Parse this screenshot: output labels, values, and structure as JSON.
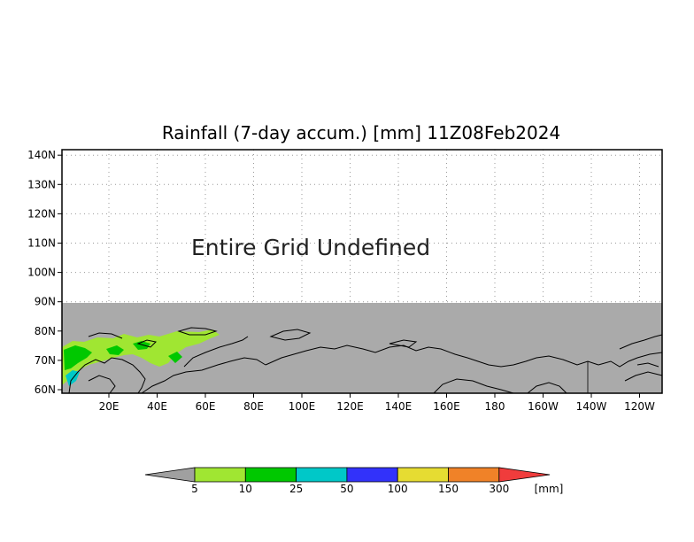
{
  "title": "Rainfall (7-day accum.) [mm] 11Z08Feb2024",
  "message": "Entire Grid Undefined",
  "map": {
    "lat_labels": [
      "140N",
      "130N",
      "120N",
      "110N",
      "100N",
      "90N",
      "80N",
      "70N",
      "60N"
    ],
    "lon_labels": [
      "20E",
      "40E",
      "60E",
      "80E",
      "100E",
      "120E",
      "140E",
      "160E",
      "180",
      "160W",
      "140W",
      "120W"
    ],
    "grid": true,
    "undefined_fill": "#aaaaaa",
    "coast_color": "#000000"
  },
  "colorbar": {
    "unit": "[mm]",
    "boundaries": [
      "5",
      "10",
      "25",
      "50",
      "100",
      "150",
      "300"
    ],
    "colors": [
      "#a0e632",
      "#00c800",
      "#00c8c8",
      "#3232fa",
      "#e6dc32",
      "#f08228",
      "#f03c3c"
    ],
    "under_color": "#a0a0a0"
  }
}
